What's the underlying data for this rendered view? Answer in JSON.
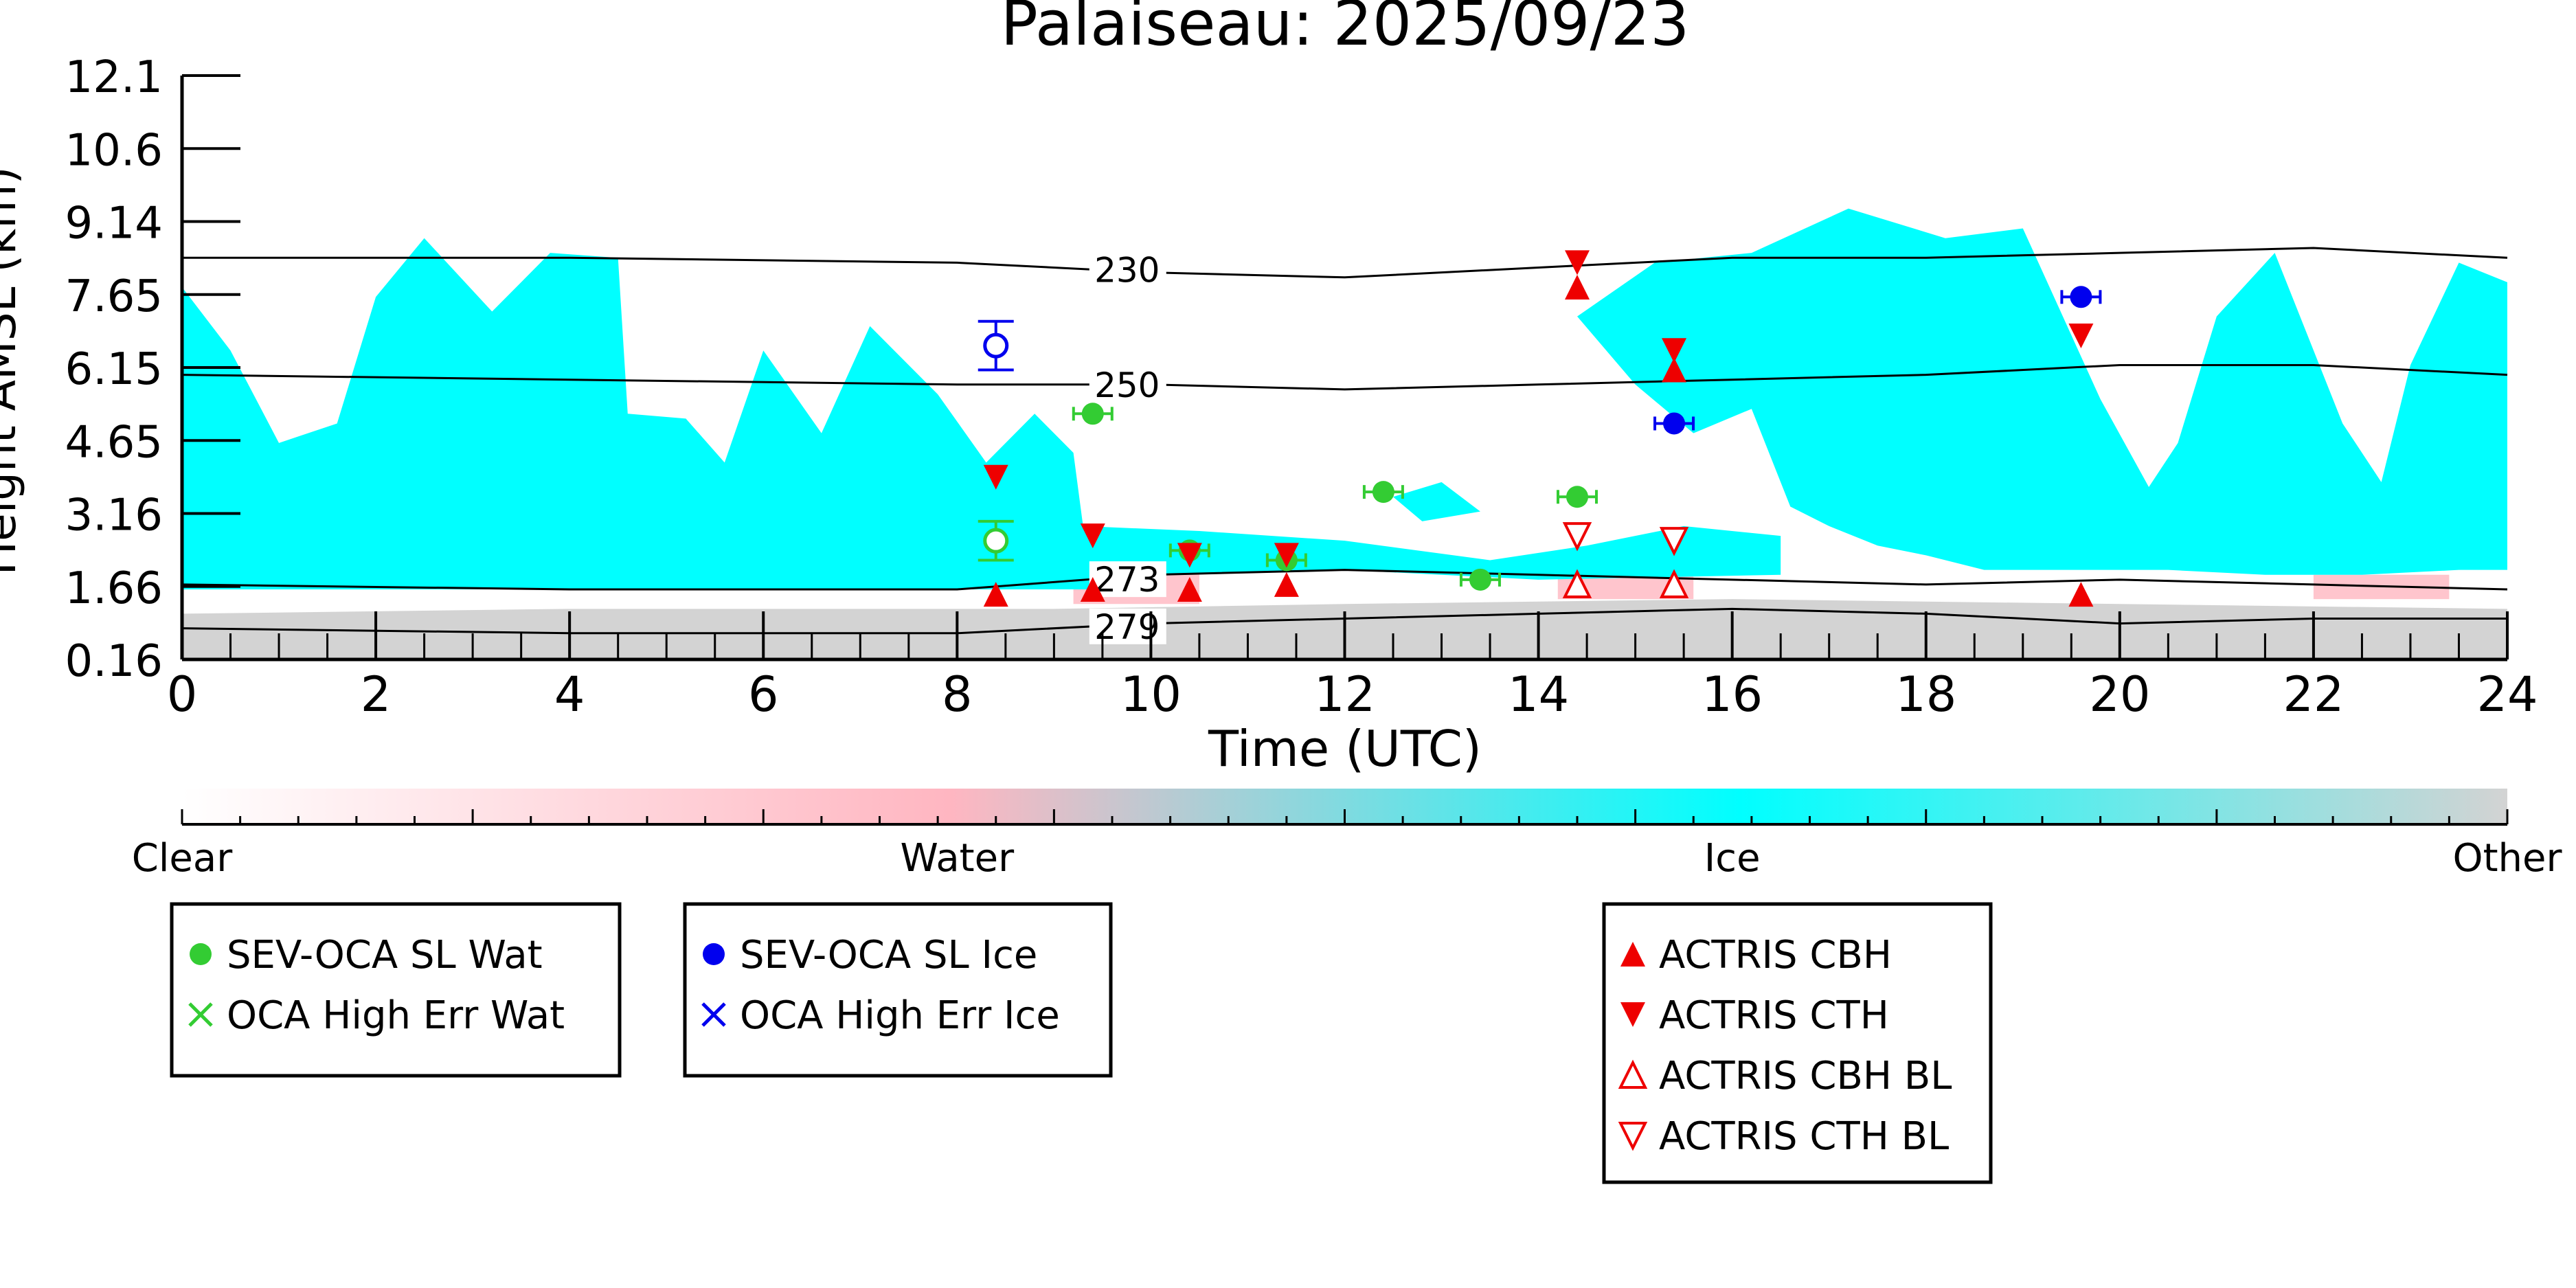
{
  "chart_data": {
    "type": "scatter",
    "title": "Palaiseau: 2025/09/23",
    "xlabel": "Time (UTC)",
    "ylabel": "Height AMSL (km)",
    "xlim": [
      0,
      24
    ],
    "ylim": [
      0.16,
      12.1
    ],
    "x_ticks": [
      "0",
      "2",
      "4",
      "6",
      "8",
      "10",
      "12",
      "14",
      "16",
      "18",
      "20",
      "22",
      "24"
    ],
    "y_ticks": [
      "0.16",
      "1.66",
      "3.16",
      "4.65",
      "6.15",
      "7.65",
      "9.14",
      "10.6",
      "12.1"
    ],
    "y_tick_values": [
      0.16,
      1.66,
      3.16,
      4.65,
      6.15,
      7.65,
      9.14,
      10.6,
      12.1
    ],
    "grid": false,
    "colors": {
      "clear": "#ffffff",
      "water": "#ffb6c1",
      "ice": "#00ffff",
      "other": "#d3d3d3",
      "wat": "#33cc33",
      "ice_marker": "#0000ee",
      "actris": "#ee0000"
    },
    "colorbar": {
      "labels": [
        "Clear",
        "Water",
        "Ice",
        "Other"
      ]
    },
    "background_classification": {
      "other_layer_top_km": [
        [
          0,
          1.1
        ],
        [
          4,
          1.2
        ],
        [
          9,
          1.2
        ],
        [
          12,
          1.3
        ],
        [
          16,
          1.4
        ],
        [
          20,
          1.3
        ],
        [
          24,
          1.2
        ]
      ],
      "water_layer": [
        [
          9.2,
          1.3,
          2.1
        ],
        [
          14.2,
          1.4,
          2.0
        ],
        [
          22,
          1.4,
          1.9
        ]
      ],
      "ice_regions": [
        [
          [
            0,
            1.6
          ],
          [
            0,
            7.8
          ],
          [
            0.5,
            6.5
          ],
          [
            1.0,
            4.6
          ],
          [
            1.6,
            5.0
          ],
          [
            2.0,
            7.6
          ],
          [
            2.5,
            8.8
          ],
          [
            3.2,
            7.3
          ],
          [
            3.8,
            8.5
          ],
          [
            4.5,
            8.4
          ],
          [
            4.6,
            5.2
          ],
          [
            5.2,
            5.1
          ],
          [
            5.6,
            4.2
          ],
          [
            6.0,
            6.5
          ],
          [
            6.6,
            4.8
          ],
          [
            7.1,
            7.0
          ],
          [
            7.8,
            5.6
          ],
          [
            8.3,
            4.2
          ],
          [
            8.8,
            5.2
          ],
          [
            9.2,
            4.4
          ],
          [
            9.3,
            2.9
          ],
          [
            9.4,
            1.6
          ]
        ],
        [
          [
            9.0,
            1.7
          ],
          [
            9.3,
            2.9
          ],
          [
            10.5,
            2.8
          ],
          [
            12.0,
            2.6
          ],
          [
            13.5,
            2.2
          ],
          [
            14.5,
            2.5
          ],
          [
            15.5,
            2.9
          ],
          [
            16.5,
            2.7
          ],
          [
            16.5,
            1.9
          ],
          [
            14.0,
            1.8
          ],
          [
            12.0,
            2.0
          ],
          [
            10.0,
            1.9
          ]
        ],
        [
          [
            14.4,
            7.2
          ],
          [
            15.0,
            5.8
          ],
          [
            15.6,
            4.8
          ],
          [
            16.2,
            5.3
          ],
          [
            16.6,
            3.3
          ],
          [
            17.0,
            2.9
          ],
          [
            17.5,
            2.5
          ],
          [
            18.0,
            2.3
          ],
          [
            18.6,
            2.0
          ],
          [
            19.5,
            2.0
          ],
          [
            20.5,
            2.0
          ],
          [
            21.5,
            1.9
          ],
          [
            22.5,
            1.9
          ],
          [
            23.5,
            2.0
          ],
          [
            24,
            2.0
          ],
          [
            24,
            7.9
          ],
          [
            23.5,
            8.3
          ],
          [
            23.0,
            6.2
          ],
          [
            22.7,
            3.8
          ],
          [
            22.3,
            5.0
          ],
          [
            21.6,
            8.5
          ],
          [
            21.0,
            7.2
          ],
          [
            20.6,
            4.6
          ],
          [
            20.3,
            3.7
          ],
          [
            19.8,
            5.5
          ],
          [
            19.0,
            9.0
          ],
          [
            18.2,
            8.8
          ],
          [
            17.2,
            9.4
          ],
          [
            16.2,
            8.5
          ],
          [
            15.2,
            8.3
          ]
        ],
        [
          [
            12.5,
            3.5
          ],
          [
            13.0,
            3.8
          ],
          [
            13.4,
            3.2
          ],
          [
            12.8,
            3.0
          ]
        ]
      ]
    },
    "isotherms": [
      {
        "label": "230",
        "label_x": 9.4,
        "points": [
          [
            0,
            8.4
          ],
          [
            4,
            8.4
          ],
          [
            8,
            8.3
          ],
          [
            10,
            8.1
          ],
          [
            12,
            8.0
          ],
          [
            14,
            8.2
          ],
          [
            16,
            8.4
          ],
          [
            18,
            8.4
          ],
          [
            20,
            8.5
          ],
          [
            22,
            8.6
          ],
          [
            24,
            8.4
          ]
        ]
      },
      {
        "label": "250",
        "label_x": 9.4,
        "points": [
          [
            0,
            6.0
          ],
          [
            4,
            5.9
          ],
          [
            8,
            5.8
          ],
          [
            10,
            5.8
          ],
          [
            12,
            5.7
          ],
          [
            14,
            5.8
          ],
          [
            16,
            5.9
          ],
          [
            18,
            6.0
          ],
          [
            20,
            6.2
          ],
          [
            22,
            6.2
          ],
          [
            24,
            6.0
          ]
        ]
      },
      {
        "label": "273",
        "label_x": 9.4,
        "points": [
          [
            0,
            1.7
          ],
          [
            4,
            1.6
          ],
          [
            8,
            1.6
          ],
          [
            10,
            1.9
          ],
          [
            12,
            2.0
          ],
          [
            14,
            1.9
          ],
          [
            16,
            1.8
          ],
          [
            18,
            1.7
          ],
          [
            20,
            1.8
          ],
          [
            22,
            1.7
          ],
          [
            24,
            1.6
          ]
        ]
      },
      {
        "label": "279",
        "label_x": 9.4,
        "points": [
          [
            0,
            0.8
          ],
          [
            4,
            0.7
          ],
          [
            8,
            0.7
          ],
          [
            10,
            0.9
          ],
          [
            12,
            1.0
          ],
          [
            14,
            1.1
          ],
          [
            16,
            1.2
          ],
          [
            18,
            1.1
          ],
          [
            20,
            0.9
          ],
          [
            22,
            1.0
          ],
          [
            24,
            1.0
          ]
        ]
      }
    ],
    "series": [
      {
        "name": "SEV-OCA SL Wat",
        "marker": "filled-circle",
        "color": "#33cc33",
        "points": [
          [
            9.4,
            5.2
          ],
          [
            10.4,
            2.4
          ],
          [
            11.4,
            2.2
          ],
          [
            12.4,
            3.6
          ],
          [
            13.4,
            1.8
          ],
          [
            14.4,
            3.5
          ]
        ]
      },
      {
        "name": "OCA High Err Wat",
        "marker": "cross",
        "color": "#33cc33",
        "points": []
      },
      {
        "name": "SEV-OCA SL Ice",
        "marker": "filled-circle",
        "color": "#0000ee",
        "points": [
          [
            15.4,
            5.0
          ],
          [
            19.6,
            7.6
          ]
        ]
      },
      {
        "name": "OCA High Err Ice",
        "marker": "cross",
        "color": "#0000ee",
        "points": []
      },
      {
        "name": "ACTRIS CBH",
        "marker": "triangle-up",
        "color": "#ee0000",
        "points": [
          [
            8.4,
            1.5
          ],
          [
            9.4,
            1.6
          ],
          [
            10.4,
            1.6
          ],
          [
            11.4,
            1.7
          ],
          [
            14.4,
            7.8
          ],
          [
            15.4,
            6.1
          ],
          [
            19.6,
            1.5
          ]
        ]
      },
      {
        "name": "ACTRIS CTH",
        "marker": "triangle-down",
        "color": "#ee0000",
        "points": [
          [
            8.4,
            3.9
          ],
          [
            9.4,
            2.7
          ],
          [
            10.4,
            2.3
          ],
          [
            11.4,
            2.3
          ],
          [
            14.4,
            8.3
          ],
          [
            15.4,
            6.5
          ],
          [
            19.6,
            6.8
          ]
        ]
      },
      {
        "name": "ACTRIS CBH BL",
        "marker": "open-triangle-up",
        "color": "#ee0000",
        "points": [
          [
            14.4,
            1.7
          ],
          [
            15.4,
            1.7
          ]
        ]
      },
      {
        "name": "ACTRIS CTH BL",
        "marker": "open-triangle-down",
        "color": "#ee0000",
        "points": [
          [
            14.4,
            2.7
          ],
          [
            15.4,
            2.6
          ]
        ]
      }
    ],
    "high_error_open_markers": [
      {
        "x": 8.4,
        "y": 6.6,
        "yerr": 0.5,
        "color": "#0000ee"
      },
      {
        "x": 8.4,
        "y": 2.6,
        "yerr": 0.4,
        "color": "#33cc33"
      }
    ],
    "legends": [
      {
        "entries": [
          "SEV-OCA SL Wat",
          "OCA High Err Wat"
        ]
      },
      {
        "entries": [
          "SEV-OCA SL Ice",
          "OCA High Err Ice"
        ]
      },
      {
        "entries": [
          "ACTRIS CBH",
          "ACTRIS CTH",
          "ACTRIS CBH BL",
          "ACTRIS CTH BL"
        ]
      }
    ]
  }
}
